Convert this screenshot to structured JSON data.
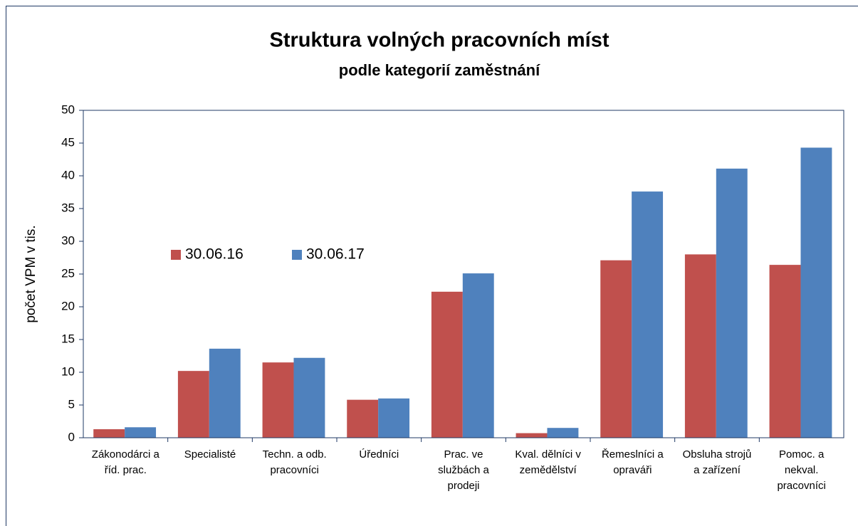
{
  "chart_data": {
    "type": "bar",
    "title": "Struktura volných pracovních míst",
    "subtitle": "podle kategorií zaměstnání",
    "y_label": "počet VPM v tis.",
    "categories": [
      "Zákonodárci a říd. prac.",
      "Specialisté",
      "Techn. a odb. pracovníci",
      "Úředníci",
      "Prac. ve službách a prodeji",
      "Kval. dělníci v zemědělství",
      "Řemeslníci a opraváři",
      "Obsluha strojů a zařízení",
      "Pomoc. a nekval. pracovníci"
    ],
    "series": [
      {
        "name": "30.06.16",
        "color": "#c0504d",
        "values": [
          1.3,
          10.2,
          11.5,
          5.8,
          22.3,
          0.7,
          27.1,
          28.0,
          26.4
        ]
      },
      {
        "name": "30.06.17",
        "color": "#4f81bd",
        "values": [
          1.6,
          13.6,
          12.2,
          6.0,
          25.1,
          1.5,
          37.6,
          41.1,
          44.3
        ]
      }
    ],
    "ylim": [
      0,
      50
    ],
    "yticks": [
      0,
      5,
      10,
      15,
      20,
      25,
      30,
      35,
      40,
      45,
      50
    ],
    "grid": false
  }
}
